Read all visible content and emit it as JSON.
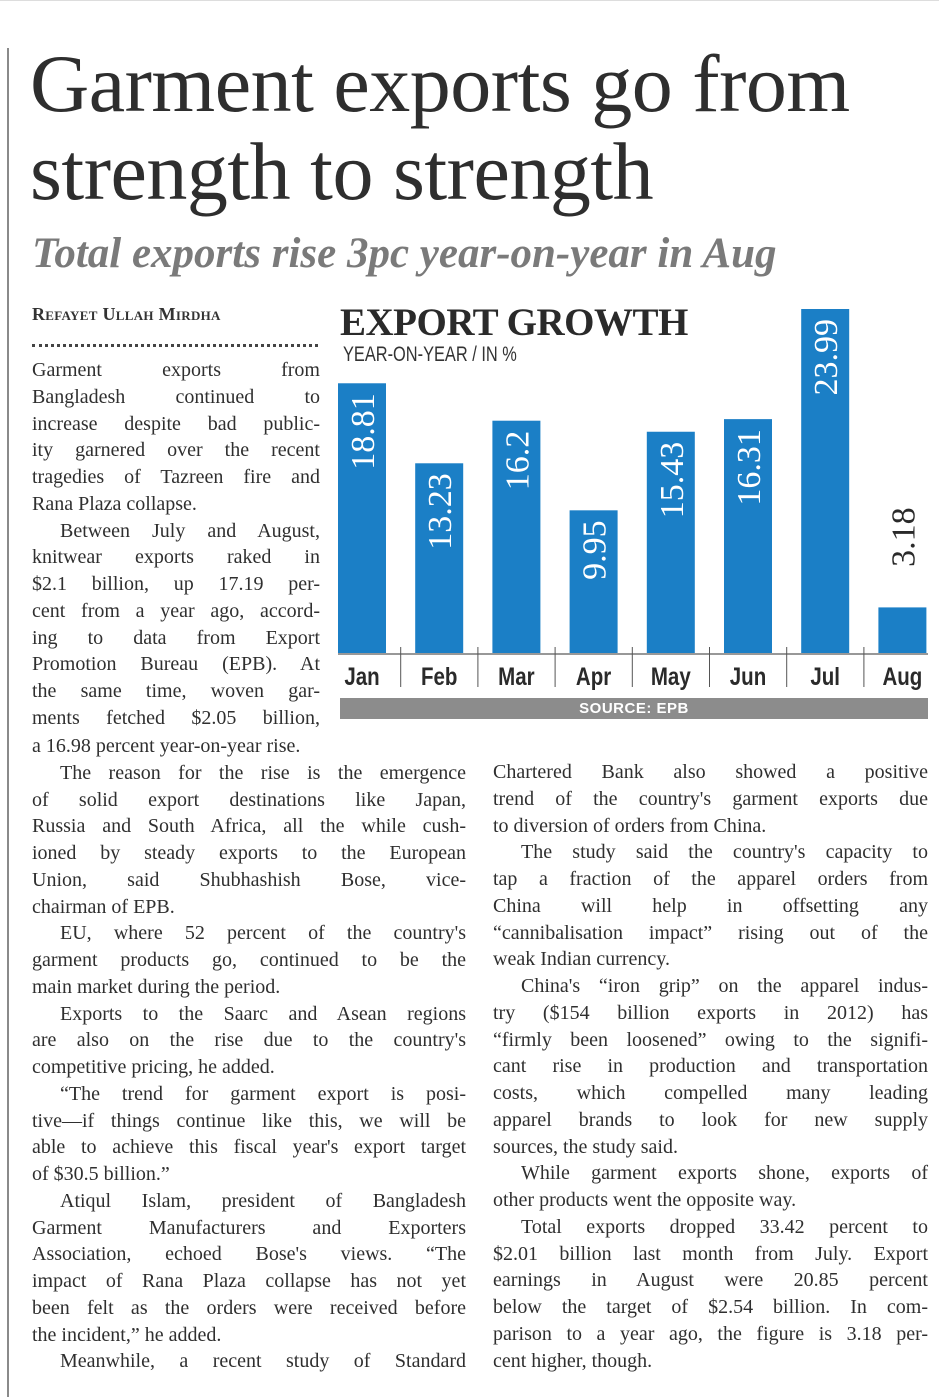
{
  "headline": "Garment exports go from strength to strength",
  "subheadline": "Total exports rise 3pc year-on-year in Aug",
  "byline": "Refayet Ullah Mirdha",
  "colors": {
    "bar": "#1b7fc6",
    "source_bar": "#8c8c8c",
    "text": "#2f2f2f",
    "subheadline": "#7a7a7a"
  },
  "chart_data": {
    "type": "bar",
    "title": "EXPORT GROWTH",
    "subtitle": "YEAR-ON-YEAR / IN %",
    "categories": [
      "Jan",
      "Feb",
      "Mar",
      "Apr",
      "May",
      "Jun",
      "Jul",
      "Aug"
    ],
    "values": [
      18.81,
      13.23,
      16.2,
      9.95,
      15.43,
      16.31,
      23.99,
      3.18
    ],
    "value_labels": [
      "18.81",
      "13.23",
      "16.2",
      "9.95",
      "15.43",
      "16.31",
      "23.99",
      "3.18"
    ],
    "xlabel": "",
    "ylabel": "",
    "ylim": [
      0,
      24
    ],
    "source": "SOURCE: EPB"
  },
  "article": {
    "colA": [
      {
        "lines": [
          "Garment exports from",
          "Bangladesh continued to",
          "increase despite bad public-",
          "ity garnered over the recent",
          "tragedies of Tazreen fire and",
          "Rana Plaza collapse."
        ]
      },
      {
        "lines": [
          "Between July and August,",
          "knitwear exports raked in",
          "$2.1 billion, up 17.19 per-",
          "cent from a year ago, accord-",
          "ing to data from Export",
          "Promotion Bureau (EPB). At",
          "the same time, woven gar-",
          "ments fetched $2.05 billion,"
        ],
        "continues": true
      }
    ],
    "colB": [
      {
        "lines": [
          "a 16.98 percent year-on-year rise."
        ],
        "cont": true
      },
      {
        "lines": [
          "The reason for the rise is the emergence",
          "of solid export destinations like Japan,",
          "Russia and South Africa, all the while cush-",
          "ioned by steady exports to the European",
          "Union, said Shubhashish Bose, vice-",
          "chairman of EPB."
        ]
      },
      {
        "lines": [
          "EU, where 52 percent of the country's",
          "garment products go, continued to be the",
          "main market during the period."
        ]
      },
      {
        "lines": [
          "Exports to the Saarc and Asean regions",
          "are also on the rise due to the country's",
          "competitive pricing, he added."
        ]
      },
      {
        "lines": [
          "“The trend for garment export is posi-",
          "tive—if things continue like this, we will be",
          "able to achieve this fiscal year's export target",
          "of $30.5 billion.”"
        ]
      },
      {
        "lines": [
          "Atiqul Islam, president of Bangladesh",
          "Garment Manufacturers and Exporters",
          "Association, echoed Bose's views. “The",
          "impact of Rana Plaza collapse has not yet",
          "been felt as the orders were received before",
          "the incident,” he added."
        ]
      },
      {
        "lines": [
          "Meanwhile, a recent study of Standard"
        ],
        "continues": true
      }
    ],
    "colC": [
      {
        "lines": [
          "Chartered Bank also showed a positive",
          "trend of the country's garment exports due",
          "to diversion of orders from China."
        ],
        "cont": true
      },
      {
        "lines": [
          "The study said the country's capacity to",
          "tap a fraction of the apparel orders from",
          "China will help in offsetting any",
          "“cannibalisation impact” rising out of the",
          "weak Indian currency."
        ]
      },
      {
        "lines": [
          "China's “iron grip” on the apparel indus-",
          "try ($154 billion exports in 2012) has",
          "“firmly been loosened” owing to the signifi-",
          "cant rise in production and transportation",
          "costs, which compelled many leading",
          "apparel brands to look for new supply",
          "sources, the study said."
        ]
      },
      {
        "lines": [
          "While garment exports shone, exports of",
          "other products went the opposite way."
        ]
      },
      {
        "lines": [
          "Total exports dropped 33.42 percent to",
          "$2.01 billion last month from July. Export",
          "earnings in August were 20.85 percent",
          "below the target of $2.54 billion. In com-",
          "parison to a year ago, the figure is 3.18 per-",
          "cent higher, though."
        ]
      }
    ]
  }
}
